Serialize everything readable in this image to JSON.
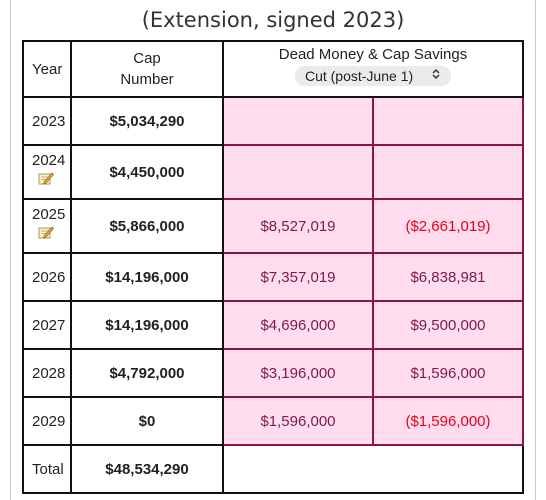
{
  "page_title": "(Extension, signed 2023)",
  "table": {
    "headers": {
      "year": "Year",
      "cap_line1": "Cap",
      "cap_line2": "Number",
      "dead_savings": "Dead Money & Cap Savings",
      "scenario_select": "Cut (post-June 1)"
    },
    "rows": [
      {
        "year": "2023",
        "cap": "$5,034,290",
        "dead": "",
        "savings": "",
        "note": false,
        "savings_negative": false
      },
      {
        "year": "2024",
        "cap": "$4,450,000",
        "dead": "",
        "savings": "",
        "note": true,
        "savings_negative": false
      },
      {
        "year": "2025",
        "cap": "$5,866,000",
        "dead": "$8,527,019",
        "savings": "($2,661,019)",
        "note": true,
        "savings_negative": true
      },
      {
        "year": "2026",
        "cap": "$14,196,000",
        "dead": "$7,357,019",
        "savings": "$6,838,981",
        "note": false,
        "savings_negative": false
      },
      {
        "year": "2027",
        "cap": "$14,196,000",
        "dead": "$4,696,000",
        "savings": "$9,500,000",
        "note": false,
        "savings_negative": false
      },
      {
        "year": "2028",
        "cap": "$4,792,000",
        "dead": "$3,196,000",
        "savings": "$1,596,000",
        "note": false,
        "savings_negative": false
      },
      {
        "year": "2029",
        "cap": "$0",
        "dead": "$1,596,000",
        "savings": "($1,596,000)",
        "note": false,
        "savings_negative": true
      }
    ],
    "total": {
      "label": "Total",
      "cap": "$48,534,290"
    }
  },
  "colors": {
    "pink_fill": "#ffdcee",
    "pink_border": "#8a1548",
    "negative_text": "#e8001a",
    "dead_text": "#7a1b4a"
  },
  "icons": {
    "note": "notepad-pencil-icon",
    "select_chevron": "up-down-chevron-icon"
  }
}
